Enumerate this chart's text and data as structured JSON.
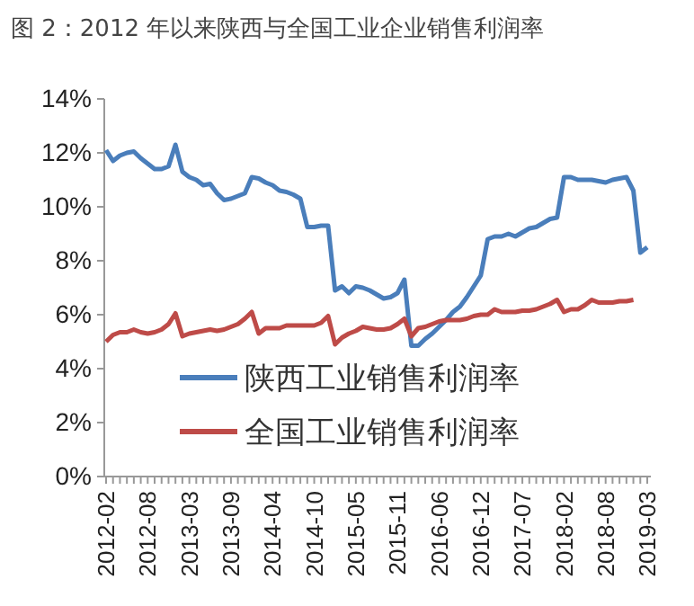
{
  "chart_data": {
    "type": "line",
    "title": "图 2：2012 年以来陕西与全国工业企业销售利润率",
    "categories": [
      "2012-02",
      null,
      null,
      null,
      null,
      null,
      "2012-08",
      null,
      null,
      null,
      null,
      null,
      "2013-03",
      null,
      null,
      null,
      null,
      null,
      "2013-09",
      null,
      null,
      null,
      null,
      null,
      "2014-04",
      null,
      null,
      null,
      null,
      null,
      "2014-10",
      null,
      null,
      null,
      null,
      null,
      "2015-05",
      null,
      null,
      null,
      null,
      null,
      "2015-11",
      null,
      null,
      null,
      null,
      null,
      "2016-06",
      null,
      null,
      null,
      null,
      null,
      "2016-12",
      null,
      null,
      null,
      null,
      null,
      "2017-07",
      null,
      null,
      null,
      null,
      null,
      "2018-02",
      null,
      null,
      null,
      null,
      null,
      "2018-08",
      null,
      null,
      null,
      null,
      null,
      "2019-03"
    ],
    "series": [
      {
        "name": "陕西工业销售利润率",
        "color": "#4a7ebb",
        "values": [
          12.1,
          11.7,
          11.9,
          12.0,
          12.05,
          11.8,
          11.6,
          11.4,
          11.4,
          11.5,
          12.3,
          11.3,
          11.1,
          11.0,
          10.8,
          10.85,
          10.5,
          10.25,
          10.3,
          10.4,
          10.5,
          11.1,
          11.05,
          10.9,
          10.8,
          10.6,
          10.55,
          10.45,
          10.3,
          9.25,
          9.25,
          9.3,
          9.3,
          6.9,
          7.05,
          6.8,
          7.05,
          7.0,
          6.9,
          6.75,
          6.6,
          6.65,
          6.8,
          7.3,
          4.85,
          4.85,
          5.1,
          5.3,
          5.55,
          5.8,
          6.1,
          6.3,
          6.65,
          7.05,
          7.45,
          8.8,
          8.9,
          8.9,
          9.0,
          8.9,
          9.05,
          9.2,
          9.25,
          9.4,
          9.55,
          9.6,
          11.1,
          11.1,
          11.0,
          11.0,
          11.0,
          10.95,
          10.9,
          11.0,
          11.05,
          11.1,
          10.6,
          8.3,
          8.5
        ]
      },
      {
        "name": "全国工业销售利润率",
        "color": "#be4b48",
        "values": [
          5.0,
          5.25,
          5.35,
          5.35,
          5.45,
          5.35,
          5.3,
          5.35,
          5.45,
          5.65,
          6.05,
          5.2,
          5.3,
          5.35,
          5.4,
          5.45,
          5.4,
          5.45,
          5.55,
          5.65,
          5.85,
          6.1,
          5.3,
          5.5,
          5.5,
          5.5,
          5.6,
          5.6,
          5.6,
          5.6,
          5.6,
          5.7,
          5.95,
          4.9,
          5.15,
          5.3,
          5.4,
          5.55,
          5.5,
          5.45,
          5.45,
          5.5,
          5.65,
          5.85,
          5.2,
          5.5,
          5.55,
          5.65,
          5.75,
          5.8,
          5.8,
          5.8,
          5.85,
          5.95,
          6.0,
          6.0,
          6.2,
          6.1,
          6.1,
          6.1,
          6.15,
          6.15,
          6.2,
          6.3,
          6.4,
          6.55,
          6.1,
          6.2,
          6.2,
          6.35,
          6.55,
          6.45,
          6.45,
          6.45,
          6.5,
          6.5,
          6.55,
          null,
          null
        ]
      }
    ],
    "ylim": [
      0,
      14
    ],
    "yticks": [
      {
        "value": 0,
        "label": "0%"
      },
      {
        "value": 2,
        "label": "2%"
      },
      {
        "value": 4,
        "label": "4%"
      },
      {
        "value": 6,
        "label": "6%"
      },
      {
        "value": 8,
        "label": "8%"
      },
      {
        "value": 10,
        "label": "10%"
      },
      {
        "value": 12,
        "label": "12%"
      },
      {
        "value": 14,
        "label": "14%"
      }
    ],
    "grid": false,
    "legend": "bottom",
    "marker": "none",
    "line_style": "solid"
  }
}
